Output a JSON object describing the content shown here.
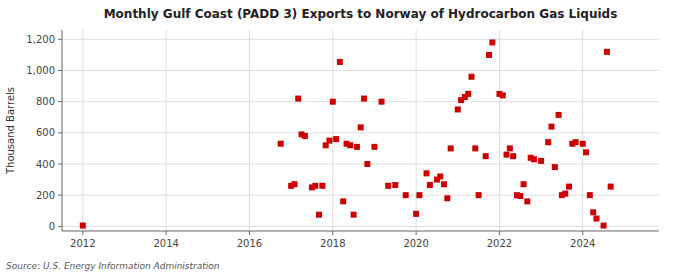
{
  "chart_data": {
    "type": "scatter",
    "title": "Monthly Gulf Coast (PADD 3) Exports to Norway of Hydrocarbon Gas Liquids",
    "ylabel": "Thousand Barrels",
    "annotation": "Source: U.S. Energy Information Administration",
    "color": "#cc0000",
    "marker": "square",
    "grid": true,
    "xlim": [
      2011.5,
      2025.83
    ],
    "ylim": [
      -30,
      1260
    ],
    "xticks": [
      2012,
      2014,
      2016,
      2018,
      2020,
      2022,
      2024
    ],
    "yticks": [
      0,
      200,
      400,
      600,
      800,
      {
        "value": 1000,
        "label": "1,000"
      },
      {
        "value": 1200,
        "label": "1,200"
      }
    ],
    "x": [
      2012.0,
      2016.75,
      2017.0,
      2017.08,
      2017.17,
      2017.25,
      2017.33,
      2017.5,
      2017.58,
      2017.67,
      2017.75,
      2017.83,
      2017.92,
      2018.0,
      2018.08,
      2018.17,
      2018.25,
      2018.33,
      2018.42,
      2018.5,
      2018.58,
      2018.67,
      2018.75,
      2018.83,
      2019.0,
      2019.17,
      2019.33,
      2019.5,
      2019.75,
      2020.0,
      2020.08,
      2020.25,
      2020.33,
      2020.5,
      2020.58,
      2020.67,
      2020.75,
      2020.83,
      2021.0,
      2021.08,
      2021.17,
      2021.25,
      2021.33,
      2021.42,
      2021.5,
      2021.67,
      2021.75,
      2021.83,
      2022.0,
      2022.08,
      2022.17,
      2022.25,
      2022.33,
      2022.42,
      2022.5,
      2022.58,
      2022.67,
      2022.75,
      2022.83,
      2023.0,
      2023.17,
      2023.25,
      2023.33,
      2023.42,
      2023.5,
      2023.58,
      2023.67,
      2023.75,
      2023.83,
      2024.0,
      2024.08,
      2024.17,
      2024.25,
      2024.33,
      2024.5,
      2024.58,
      2024.67
    ],
    "values": [
      5,
      530,
      260,
      270,
      820,
      590,
      580,
      250,
      260,
      75,
      260,
      520,
      550,
      800,
      560,
      1055,
      160,
      530,
      520,
      75,
      510,
      635,
      820,
      400,
      510,
      800,
      260,
      265,
      200,
      80,
      200,
      340,
      265,
      300,
      320,
      270,
      180,
      500,
      750,
      810,
      830,
      850,
      960,
      500,
      200,
      450,
      1100,
      1180,
      850,
      840,
      460,
      500,
      450,
      200,
      195,
      270,
      160,
      440,
      430,
      420,
      540,
      640,
      380,
      715,
      200,
      210,
      255,
      530,
      540,
      530,
      475,
      200,
      90,
      50,
      5,
      1120,
      255
    ]
  }
}
